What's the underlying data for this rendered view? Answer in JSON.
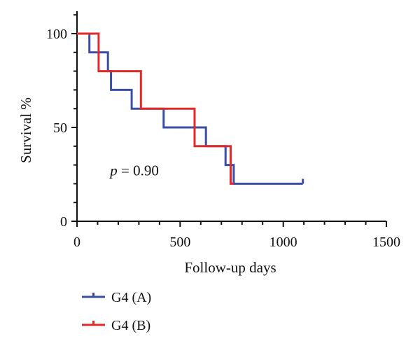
{
  "chart_data": {
    "type": "line",
    "subtype": "kaplan-meier step",
    "title": "",
    "xlabel": "Follow-up days",
    "ylabel": "Survival %",
    "xlim": [
      0,
      1500
    ],
    "ylim": [
      0,
      100
    ],
    "x_ticks": [
      0,
      500,
      1000,
      1500
    ],
    "y_ticks": [
      0,
      50,
      100
    ],
    "grid": false,
    "legend_position": "bottom-left",
    "annotation": {
      "prefix": "p",
      "text": " = 0.90",
      "x": 330,
      "y": 27
    },
    "series": [
      {
        "name": "G4 (A)",
        "color": "#3a4fa3",
        "points": [
          [
            0,
            100
          ],
          [
            60,
            100
          ],
          [
            60,
            90
          ],
          [
            150,
            90
          ],
          [
            150,
            80
          ],
          [
            165,
            80
          ],
          [
            165,
            70
          ],
          [
            265,
            70
          ],
          [
            265,
            60
          ],
          [
            420,
            60
          ],
          [
            420,
            50
          ],
          [
            625,
            50
          ],
          [
            625,
            40
          ],
          [
            720,
            40
          ],
          [
            720,
            30
          ],
          [
            760,
            30
          ],
          [
            760,
            20
          ],
          [
            1095,
            20
          ]
        ],
        "censor": [
          [
            1095,
            20
          ]
        ]
      },
      {
        "name": "G4 (B)",
        "color": "#e02a2a",
        "points": [
          [
            0,
            100
          ],
          [
            105,
            100
          ],
          [
            105,
            80
          ],
          [
            310,
            80
          ],
          [
            310,
            60
          ],
          [
            570,
            60
          ],
          [
            570,
            40
          ],
          [
            745,
            40
          ],
          [
            745,
            20
          ],
          [
            760,
            20
          ]
        ],
        "censor": []
      }
    ]
  }
}
